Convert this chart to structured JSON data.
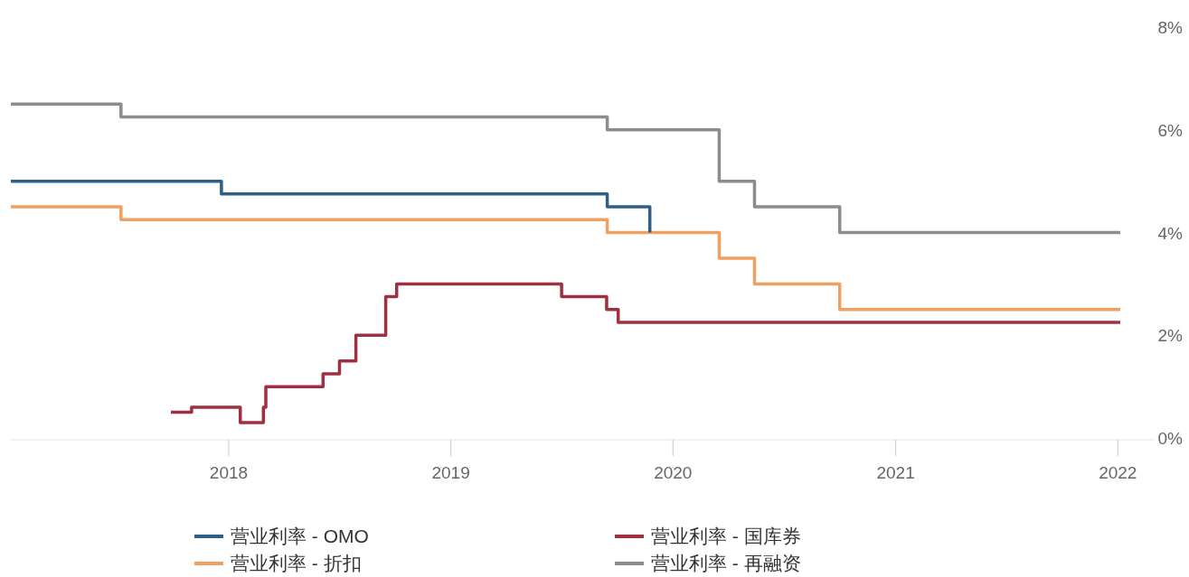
{
  "chart_data": {
    "type": "step",
    "xlim": [
      "2017-01-08",
      "2022-03-01"
    ],
    "xticks": [
      "2018",
      "2019",
      "2020",
      "2021",
      "2022"
    ],
    "ylim": [
      0,
      8
    ],
    "yticks": [
      {
        "value": 0,
        "label": "0%"
      },
      {
        "value": 2,
        "label": "2%"
      },
      {
        "value": 4,
        "label": "4%"
      },
      {
        "value": 6,
        "label": "6%"
      },
      {
        "value": 8,
        "label": "8%"
      }
    ],
    "grid": false,
    "legend": "bottom",
    "marker": "none",
    "line_style": "solid",
    "series": [
      {
        "name": "营业利率 - OMO",
        "color": "#2e5f8a",
        "x": [
          "2017-01-08",
          "2017-12-20",
          "2019-09-15",
          "2019-11-24"
        ],
        "values": [
          5.0,
          4.75,
          4.5,
          4.0
        ]
      },
      {
        "name": "营业利率 - 折扣",
        "color": "#f0a060",
        "x": [
          "2017-01-08",
          "2017-07-08",
          "2019-09-15",
          "2020-03-17",
          "2020-05-14",
          "2020-10-01",
          "2022-01-05"
        ],
        "values": [
          4.5,
          4.25,
          4.0,
          3.5,
          3.0,
          2.5,
          2.5
        ]
      },
      {
        "name": "营业利率 - 国库券",
        "color": "#a03040",
        "x": [
          "2017-09-28",
          "2017-11-01",
          "2018-01-20",
          "2018-02-27",
          "2018-03-03",
          "2018-06-05",
          "2018-07-02",
          "2018-07-29",
          "2018-09-16",
          "2018-10-04",
          "2019-07-02",
          "2019-09-14",
          "2019-10-03",
          "2022-01-05"
        ],
        "values": [
          0.5,
          0.6,
          0.3,
          0.6,
          1.0,
          1.25,
          1.5,
          2.0,
          2.75,
          3.0,
          2.75,
          2.5,
          2.25,
          2.25
        ]
      },
      {
        "name": "营业利率 - 再融资",
        "color": "#8c8c8c",
        "x": [
          "2017-01-08",
          "2017-07-08",
          "2019-09-15",
          "2020-03-17",
          "2020-05-14",
          "2020-10-01",
          "2022-01-05"
        ],
        "values": [
          6.5,
          6.25,
          6.0,
          5.0,
          4.5,
          4.0,
          4.0
        ]
      }
    ]
  }
}
